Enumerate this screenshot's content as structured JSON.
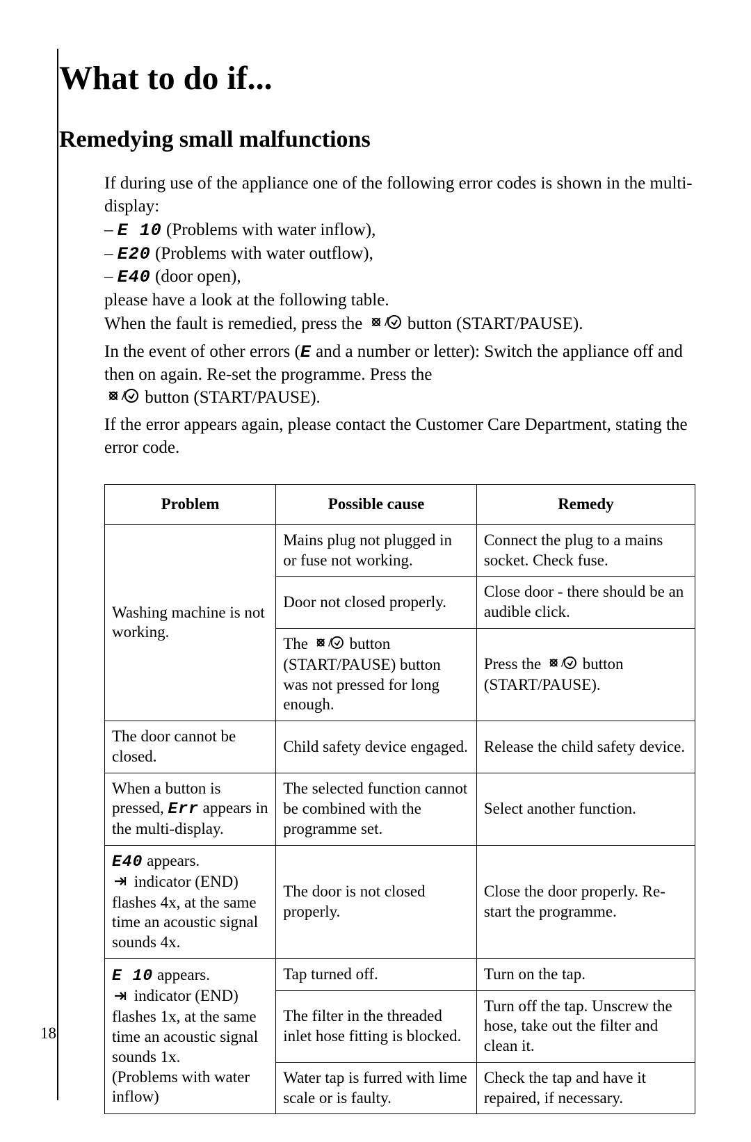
{
  "page_number": "18",
  "title": "What to do if...",
  "subtitle": "Remedying small malfunctions",
  "intro_line1": "If during use of the appliance one of the following error codes is shown in the multi-display:",
  "err_list": [
    {
      "dash": "– ",
      "code": "E 10",
      "desc": " (Problems with water inflow),"
    },
    {
      "dash": "– ",
      "code": "E20",
      "desc": " (Problems with water outflow),"
    },
    {
      "dash": "– ",
      "code": "E40",
      "desc": " (door open),"
    }
  ],
  "intro_line2": "please have a look at the following table.",
  "intro_line3_a": "When the fault is remedied, press the ",
  "intro_line3_b": " button (START/PAUSE).",
  "para2_a": "In the event of other errors (",
  "para2_code": "E",
  "para2_b": " and a number or letter): Switch the appliance off and then on again. Re-set the programme. Press the ",
  "para2_c": " button (START/PAUSE).",
  "para3": "If the error appears again, please contact the Customer Care Department, stating the error code.",
  "table": {
    "headers": [
      "Problem",
      "Possible cause",
      "Remedy"
    ],
    "rows": [
      {
        "problem": {
          "text": "Washing machine is not working.",
          "rowspan": 3
        },
        "cause": {
          "text": "Mains plug not plugged in or fuse not working."
        },
        "remedy": {
          "text": "Connect the plug to a mains socket. Check fuse."
        }
      },
      {
        "cause": {
          "text": "Door not closed properly."
        },
        "remedy": {
          "text": "Close door - there should be an audible click."
        }
      },
      {
        "cause": {
          "prefix": "The ",
          "icon": true,
          "suffix": " button (START/PAUSE) button was not pressed for long enough."
        },
        "remedy": {
          "prefix": "Press the ",
          "icon": true,
          "suffix": " button (START/PAUSE)."
        }
      },
      {
        "problem": {
          "text": "The door cannot be closed."
        },
        "cause": {
          "text": "Child safety device engaged."
        },
        "remedy": {
          "text": "Release the child safety device."
        }
      },
      {
        "problem": {
          "prefix": "When a button is pressed, ",
          "code": "Err",
          "suffix": " appears in the multi-display."
        },
        "cause": {
          "text": "The selected function cannot be combined with the programme set."
        },
        "remedy": {
          "text": "Select another function."
        }
      },
      {
        "problem": {
          "code": "E40",
          "suffix": " appears.",
          "endicon": true,
          "after_end": " indicator (END) flashes 4x, at the same time an acoustic signal sounds 4x."
        },
        "cause": {
          "text": "The door is not closed properly."
        },
        "remedy": {
          "text": "Close the door properly. Re-start the programme."
        }
      },
      {
        "problem": {
          "code": "E 10",
          "suffix": " appears.",
          "endicon": true,
          "after_end": " indicator (END) flashes 1x, at the same time an acoustic signal sounds 1x.",
          "extra": "(Problems with water inflow)",
          "rowspan": 3
        },
        "cause": {
          "text": "Tap turned off."
        },
        "remedy": {
          "text": "Turn on the tap."
        }
      },
      {
        "cause": {
          "text": "The filter in the threaded inlet hose fitting is blocked."
        },
        "remedy": {
          "text": "Turn off the tap. Unscrew the hose, take out the filter and clean it."
        }
      },
      {
        "cause": {
          "text": "Water tap is furred with lime scale or is faulty."
        },
        "remedy": {
          "text": "Check the tap and have it repaired, if necessary."
        }
      }
    ]
  }
}
